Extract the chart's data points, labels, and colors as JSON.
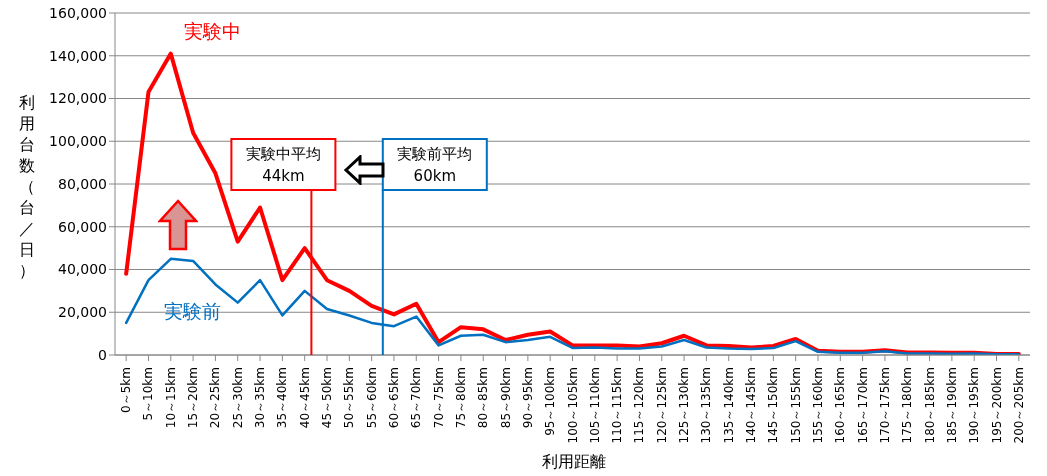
{
  "chart_data": {
    "type": "line",
    "xlabel": "利用距離",
    "ylabel": "利用台数（台／日）",
    "categories": [
      "0～5km",
      "5～10km",
      "10～15km",
      "15～20km",
      "20～25km",
      "25～30km",
      "30～35km",
      "35～40km",
      "40～45km",
      "45～50km",
      "50～55km",
      "55～60km",
      "60～65km",
      "65～70km",
      "70～75km",
      "75～80km",
      "80～85km",
      "85～90km",
      "90～95km",
      "95～100km",
      "100～105km",
      "105～110km",
      "110～115km",
      "115～120km",
      "120～125km",
      "125～130km",
      "130～135km",
      "135～140km",
      "140～145km",
      "145～150km",
      "150～155km",
      "155～160km",
      "160～165km",
      "165～170km",
      "170～175km",
      "175～180km",
      "180～185km",
      "185～190km",
      "190～195km",
      "195～200km",
      "200～205km"
    ],
    "series": [
      {
        "name": "実験中",
        "color": "#ff0000",
        "values": [
          38000,
          123000,
          141000,
          104000,
          85000,
          53000,
          69000,
          35000,
          50000,
          35000,
          30000,
          23000,
          19000,
          24000,
          6000,
          13000,
          12000,
          7000,
          9500,
          11000,
          4500,
          4500,
          4500,
          4000,
          5500,
          9000,
          4500,
          4200,
          3500,
          4200,
          7500,
          2000,
          1500,
          1500,
          2200,
          1200,
          1200,
          1000,
          1000,
          500,
          500
        ]
      },
      {
        "name": "実験前",
        "color": "#0070c0",
        "values": [
          15000,
          35000,
          45000,
          44000,
          33000,
          24500,
          35000,
          18500,
          30000,
          21500,
          18500,
          15000,
          13500,
          18000,
          4500,
          9000,
          9500,
          6000,
          7000,
          8500,
          3300,
          3500,
          3000,
          3000,
          4000,
          7000,
          3500,
          3000,
          2800,
          3300,
          6500,
          1500,
          1000,
          1000,
          1800,
          700,
          700,
          600,
          700,
          300,
          300
        ]
      }
    ],
    "ylim": [
      0,
      160000
    ],
    "yticks": [
      0,
      {
        "value": 20000,
        "label": "20,000"
      },
      {
        "value": 40000,
        "label": "40,000"
      },
      {
        "value": 60000,
        "label": "60,000"
      },
      {
        "value": 80000,
        "label": "80,000"
      },
      {
        "value": 100000,
        "label": "100,000"
      },
      {
        "value": 120000,
        "label": "120,000"
      },
      {
        "value": 140000,
        "label": "140,000"
      },
      {
        "value": 160000,
        "label": "160,000"
      }
    ],
    "grid": "y",
    "marker": "none",
    "line_style": "solid",
    "annotations": [
      "実験中平均\n44km",
      "実験前平均\n60km"
    ]
  }
}
